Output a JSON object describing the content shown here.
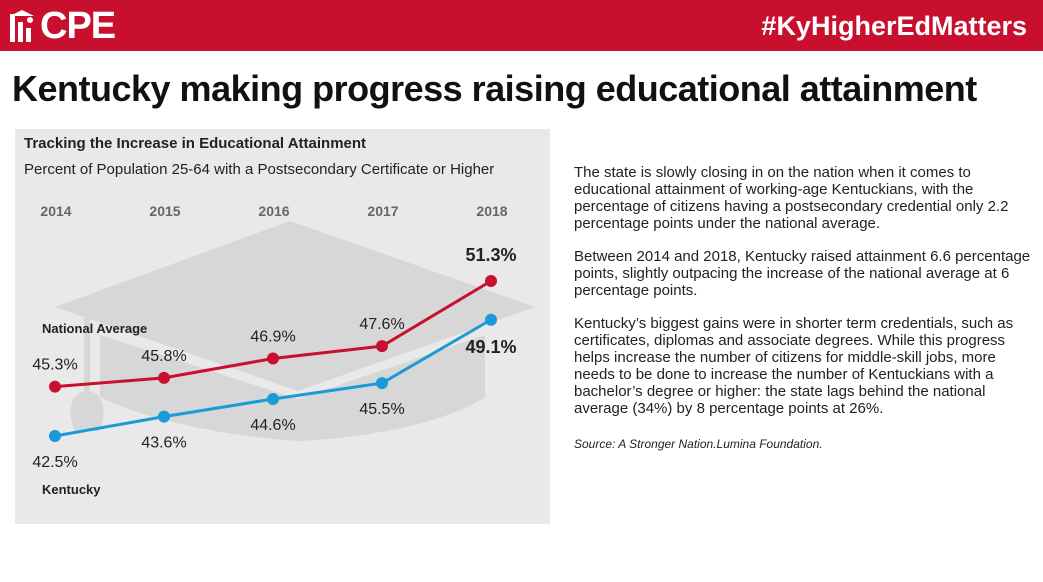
{
  "header": {
    "logo_text": "CPE",
    "hashtag": "#KyHigherEdMatters",
    "brand_color": "#c8102e"
  },
  "headline": "Kentucky making progress raising educational attainment",
  "chart": {
    "title": "Tracking the Increase in Educational Attainment",
    "subtitle": "Percent of Population 25-64 with a Postsecondary Certificate or Higher",
    "background_decoration": "graduation-cap-icon"
  },
  "chart_data": {
    "type": "line",
    "title": "Tracking the Increase in Educational Attainment",
    "subtitle": "Percent of Population 25-64 with a Postsecondary Certificate or Higher",
    "categories": [
      "2014",
      "2015",
      "2016",
      "2017",
      "2018"
    ],
    "x_axis_position": "top",
    "grid": false,
    "legend": "inline labels on the left",
    "series": [
      {
        "name": "National Average",
        "color": "#c8102e",
        "values": [
          45.3,
          45.8,
          46.9,
          47.6,
          51.3
        ],
        "labels": [
          "45.3%",
          "45.8%",
          "46.9%",
          "47.6%",
          "51.3%"
        ],
        "emphasized_last": true,
        "label_side": "above"
      },
      {
        "name": "Kentucky",
        "color": "#1a9ad6",
        "values": [
          42.5,
          43.6,
          44.6,
          45.5,
          49.1
        ],
        "labels": [
          "42.5%",
          "43.6%",
          "44.6%",
          "45.5%",
          "49.1%"
        ],
        "emphasized_last": true,
        "label_side": "below"
      }
    ]
  },
  "body_text": {
    "paragraphs": [
      "The state is slowly closing in on the nation when it comes to educational attainment of working-age Kentuckians, with the percentage of citizens having a postsecondary credential only 2.2 percentage points under the national average.",
      "Between 2014 and 2018, Kentucky raised attainment 6.6 percentage points, slightly outpacing the increase of the national average at 6 percentage points.",
      "Kentucky’s biggest gains were in shorter term credentials, such as certificates, diplomas and associate degrees. While this progress helps increase the number of citizens for middle-skill jobs, more needs to be done to increase the number of Kentuckians with a bachelor’s degree or higher: the state lags behind the national average (34%) by 8 percentage points at 26%."
    ],
    "source": "Source:  A Stronger Nation.Lumina Foundation."
  }
}
